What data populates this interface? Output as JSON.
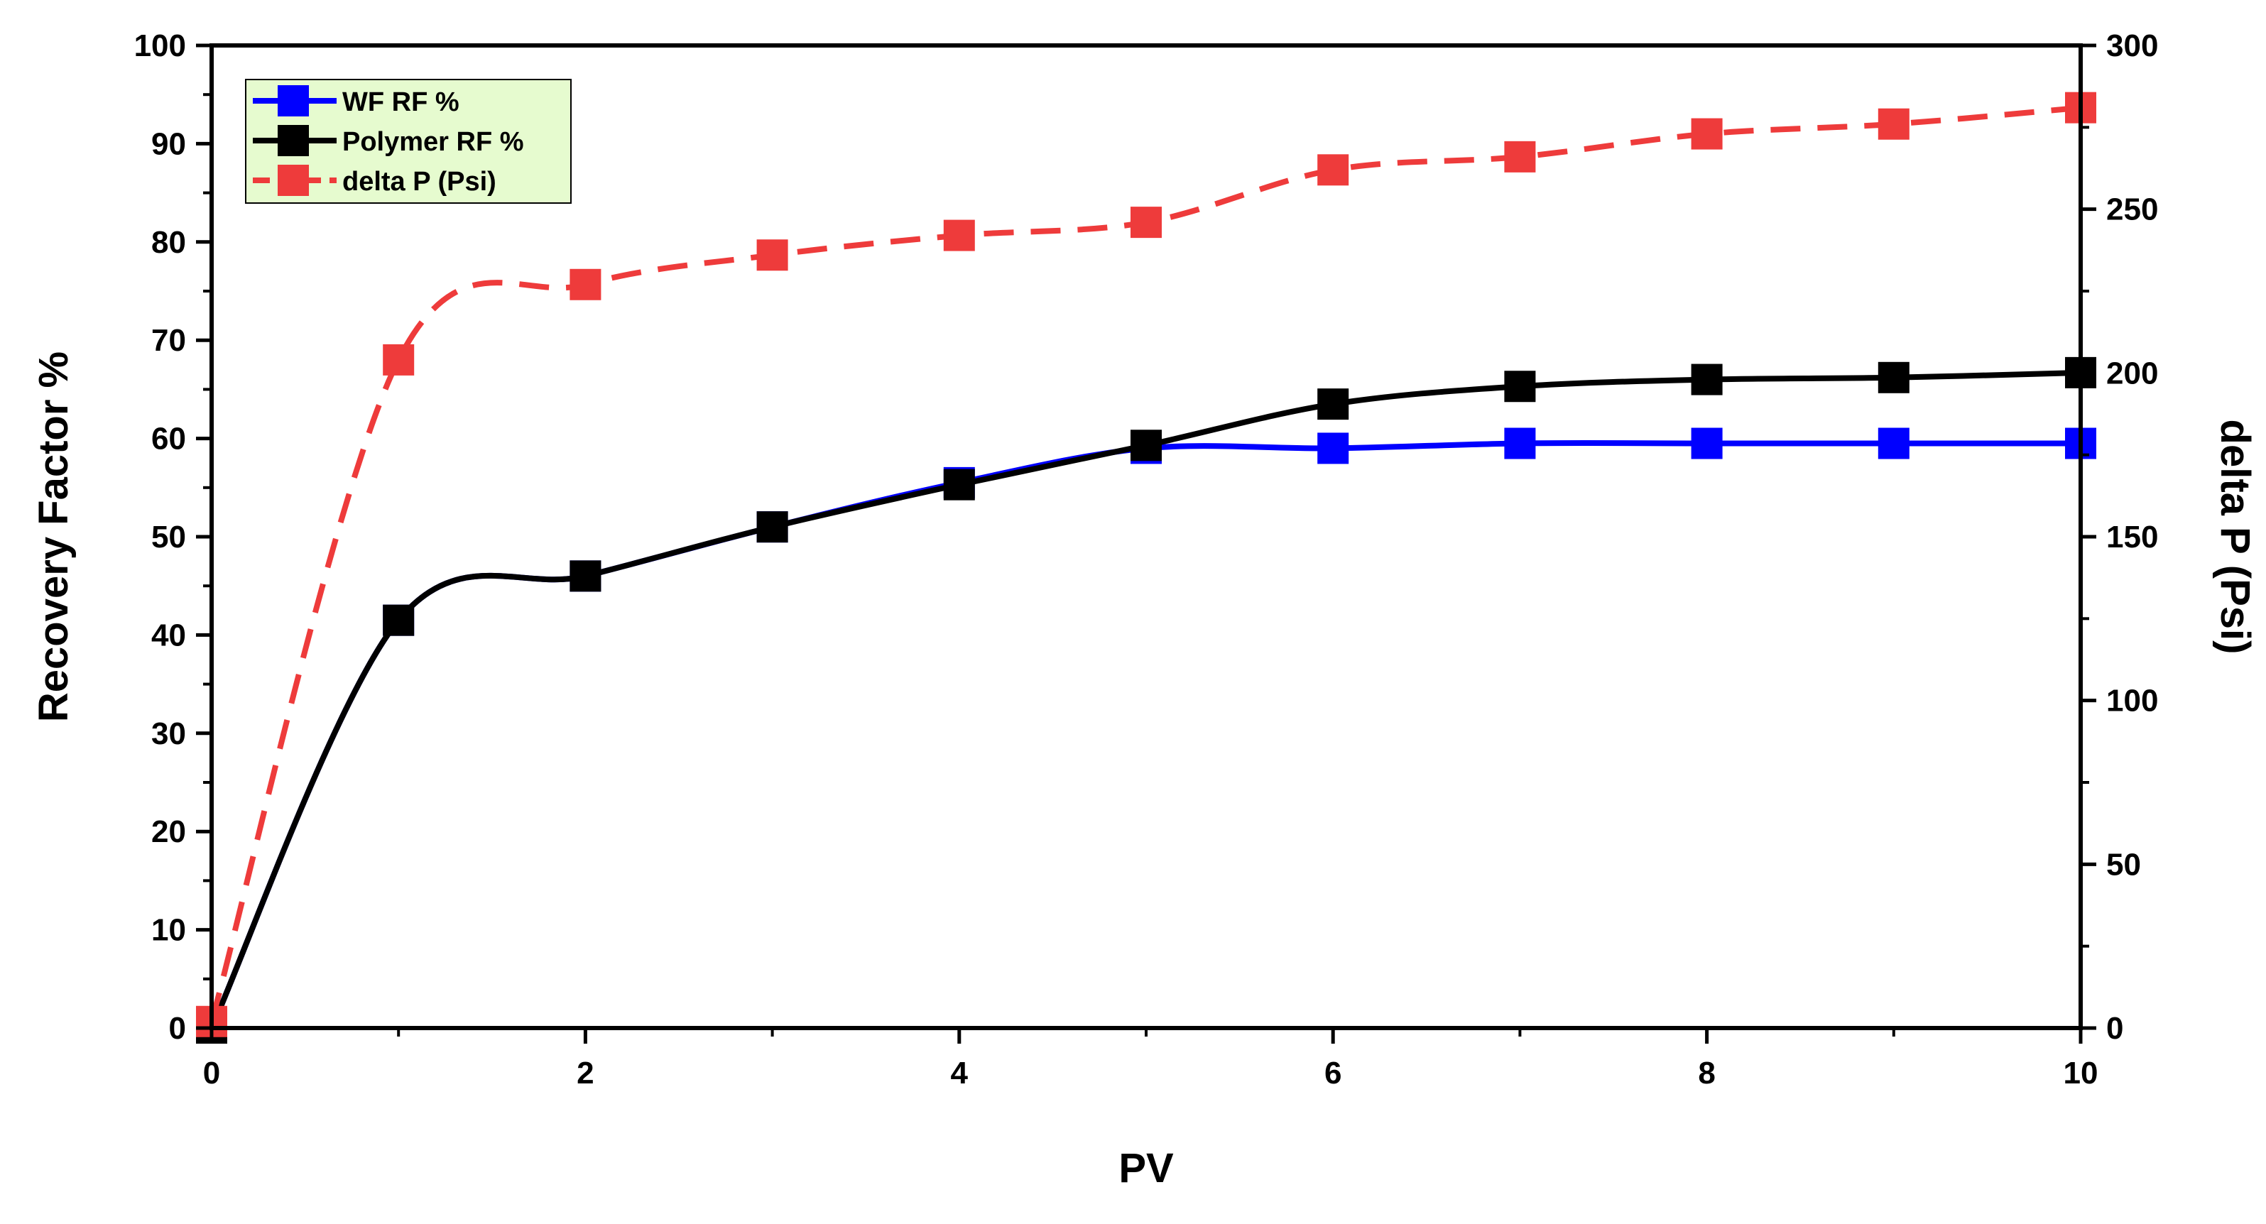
{
  "chart_data": {
    "type": "line",
    "title": "",
    "xlabel": "PV",
    "ylabel_left": "Recovery Factor %",
    "ylabel_right": "delta P (Psi)",
    "xlim": [
      0,
      10
    ],
    "ylim_left": [
      0,
      100
    ],
    "ylim_right": [
      0,
      300
    ],
    "x_ticks": [
      "0",
      "2",
      "4",
      "6",
      "8",
      "10"
    ],
    "y_left_ticks": [
      "0",
      "10",
      "20",
      "30",
      "40",
      "50",
      "60",
      "70",
      "80",
      "90",
      "100"
    ],
    "y_right_ticks": [
      "0",
      "50",
      "100",
      "150",
      "200",
      "250",
      "300"
    ],
    "grid": false,
    "legend_position": "top-left",
    "series": [
      {
        "name": "WF RF %",
        "axis": "left",
        "color": "#0000ff",
        "line_style": "solid",
        "marker": "square",
        "x": [
          0,
          1,
          2,
          3,
          4,
          5,
          6,
          7,
          8,
          9,
          10
        ],
        "values": [
          0,
          41.5,
          46,
          51,
          55.5,
          59,
          59,
          59.5,
          59.5,
          59.5,
          59.5
        ]
      },
      {
        "name": "Polymer RF %",
        "axis": "left",
        "color": "#000000",
        "line_style": "solid",
        "marker": "square",
        "x": [
          0,
          1,
          2,
          3,
          4,
          5,
          6,
          7,
          8,
          9,
          10
        ],
        "values": [
          0,
          41.5,
          46,
          51,
          55.3,
          59.3,
          63.5,
          65.3,
          66,
          66.2,
          66.7
        ]
      },
      {
        "name": "delta P (Psi)",
        "axis": "right",
        "color": "#ee3b3b",
        "line_style": "dashed",
        "marker": "square",
        "x": [
          0,
          1,
          2,
          3,
          4,
          5,
          6,
          7,
          8,
          9,
          10
        ],
        "values": [
          2,
          204,
          227,
          236,
          242,
          246,
          262,
          266,
          273,
          276,
          281
        ]
      }
    ]
  }
}
